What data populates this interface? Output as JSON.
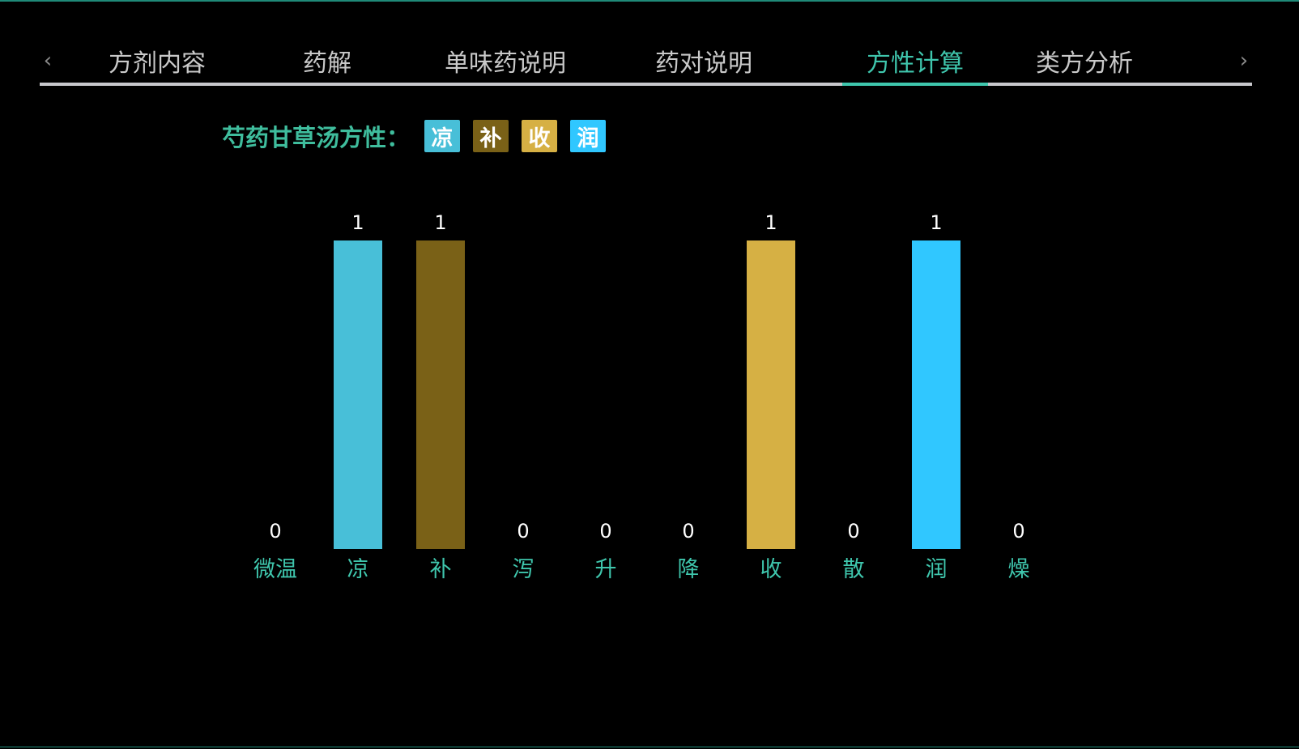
{
  "tabs": {
    "prev_arrow": "‹",
    "next_arrow": "›",
    "items": [
      {
        "label": "方剂内容"
      },
      {
        "label": "药解"
      },
      {
        "label": "单味药说明"
      },
      {
        "label": "药对说明"
      },
      {
        "label": "方性计算"
      },
      {
        "label": "类方分析"
      }
    ],
    "active_index": 4
  },
  "summary": {
    "title": "芍药甘草汤方性：",
    "badges": [
      {
        "label": "凉",
        "color": "#48bfd8"
      },
      {
        "label": "补",
        "color": "#7a6117"
      },
      {
        "label": "收",
        "color": "#d6b044"
      },
      {
        "label": "润",
        "color": "#30c7ff"
      }
    ]
  },
  "colors": {
    "accent": "#3fc6ad",
    "tab_text": "#c9c9c9",
    "value_label": "#ffffff",
    "category_label": "#3fc6ad"
  },
  "chart_data": {
    "type": "bar",
    "categories": [
      "微温",
      "凉",
      "补",
      "泻",
      "升",
      "降",
      "收",
      "散",
      "润",
      "燥"
    ],
    "values": [
      0,
      1,
      1,
      0,
      0,
      0,
      1,
      0,
      1,
      0
    ],
    "bar_colors": [
      "#48bfd8",
      "#48bfd8",
      "#7a6117",
      "#48bfd8",
      "#48bfd8",
      "#48bfd8",
      "#d6b044",
      "#48bfd8",
      "#30c7ff",
      "#48bfd8"
    ],
    "ylim": [
      0,
      1
    ],
    "grid": false,
    "title": "",
    "xlabel": "",
    "ylabel": ""
  }
}
